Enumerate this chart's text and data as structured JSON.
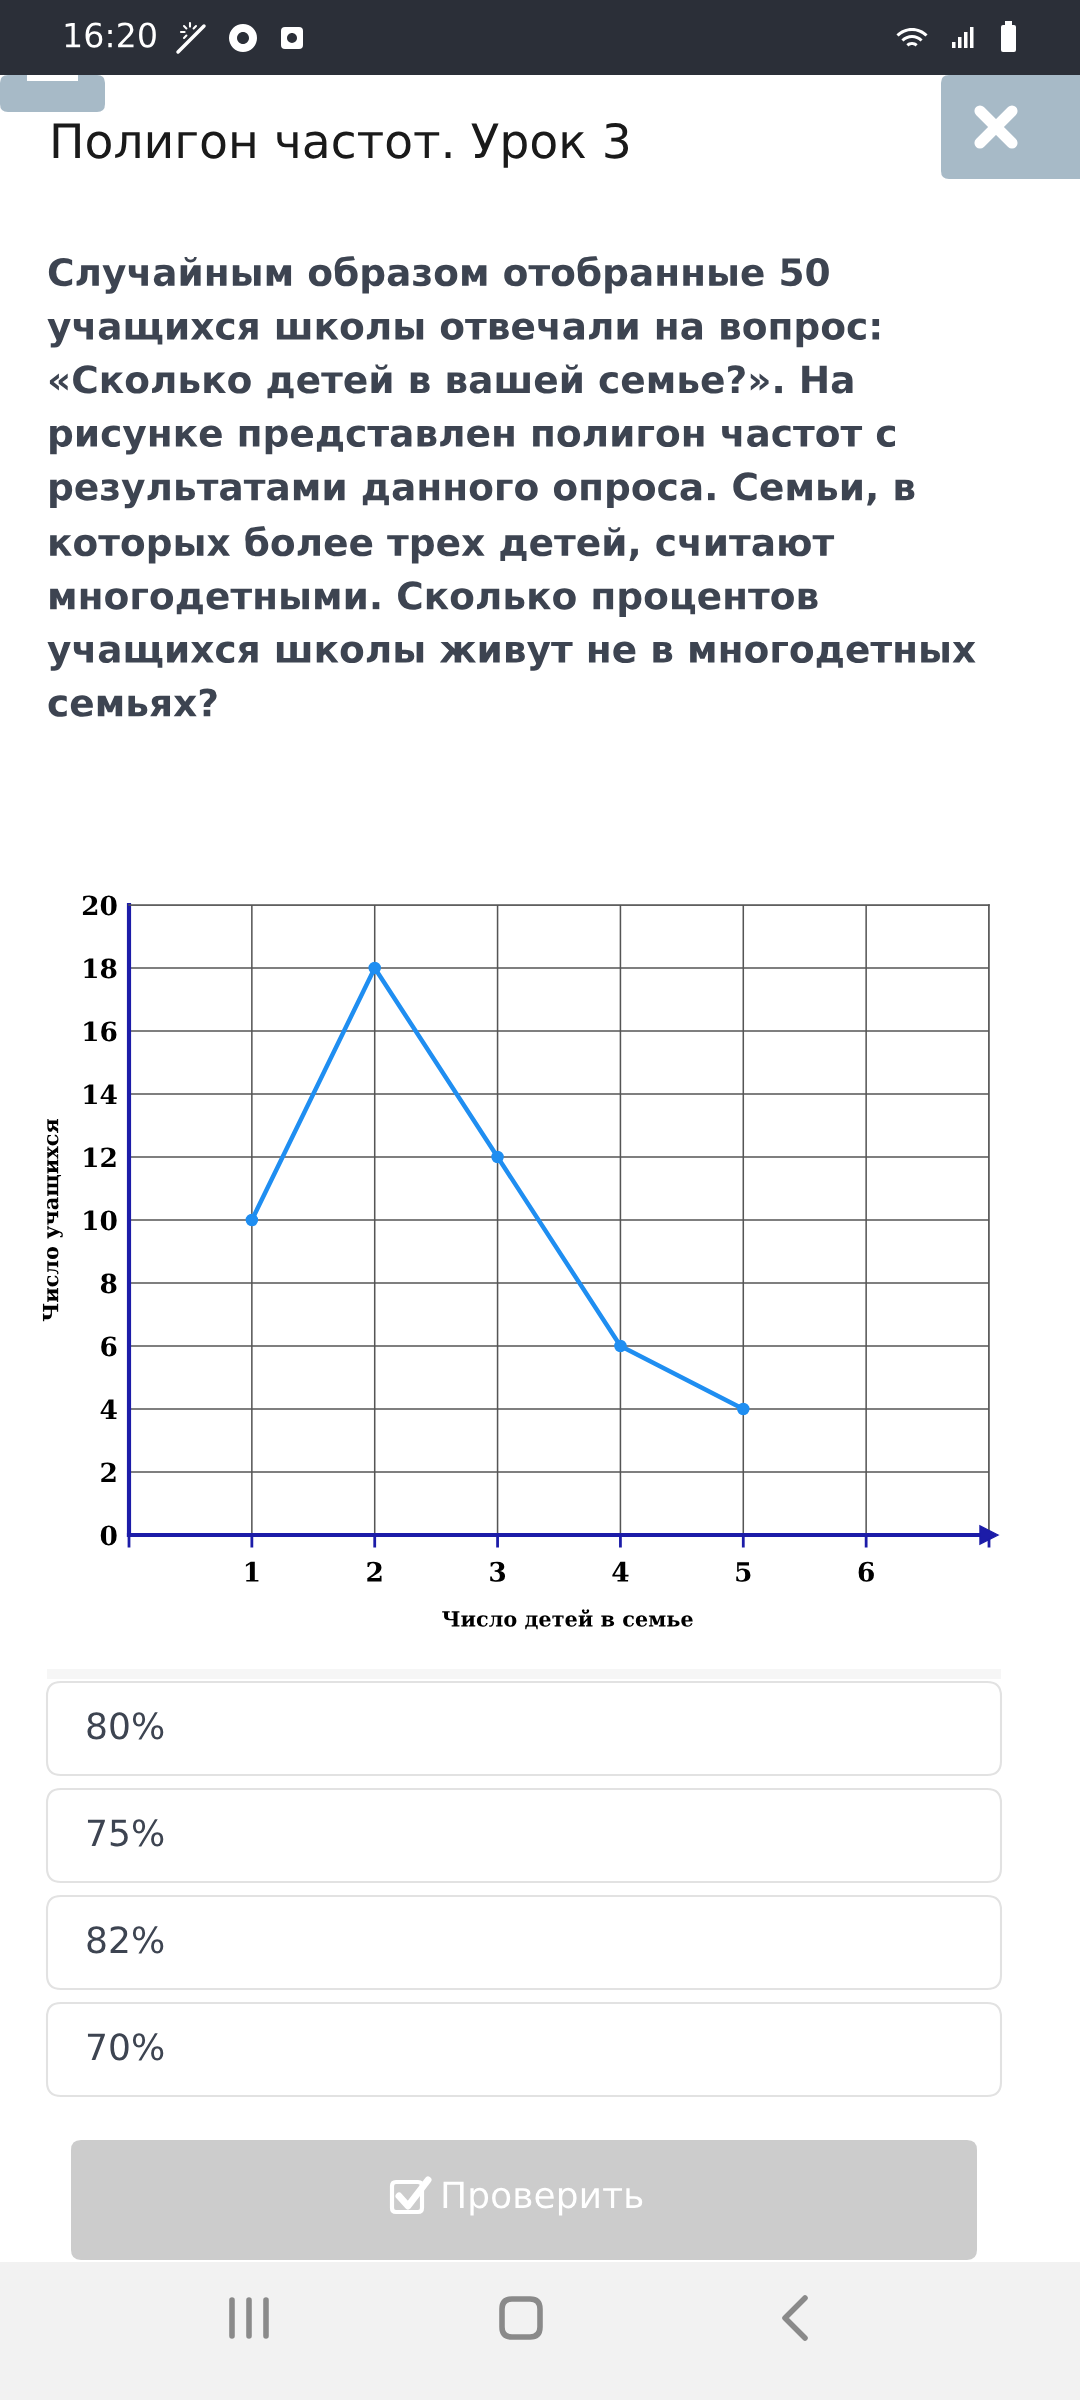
{
  "chart_data": {
    "type": "line",
    "title": "Полигон частот. Урок 3",
    "subtitle": "Случайным образом отобранные 50 учащихся школы отвечали на вопрос: «Сколько детей в вашей семье?». На рисунке представлен полигон частот с результатами данного опроса. Семьи, в которых более трех детей, считают многодетными. Сколько процентов учащихся школы живут не в многодетных семьях?",
    "xlabel": "Число детей в семье",
    "ylabel": "Число учащихся",
    "x": [
      1,
      2,
      3,
      4,
      5
    ],
    "series": [
      {
        "color": "#1f8ef1",
        "values": [
          10,
          18,
          12,
          6,
          4
        ]
      }
    ],
    "xlim": [
      0,
      7
    ],
    "xticks": [
      {
        "value": 0,
        "label": null
      },
      1,
      2,
      3,
      4,
      5,
      6,
      {
        "value": 7,
        "label": null
      }
    ],
    "ylim": [
      0,
      20
    ],
    "yticks": [
      0,
      2,
      4,
      6,
      8,
      10,
      12,
      14,
      16,
      18,
      20
    ],
    "grid": true,
    "marker": "circle",
    "line_style": "solid",
    "annotations": [
      "16:20",
      "80%",
      "75%",
      "82%",
      "70%",
      "Проверить"
    ]
  }
}
